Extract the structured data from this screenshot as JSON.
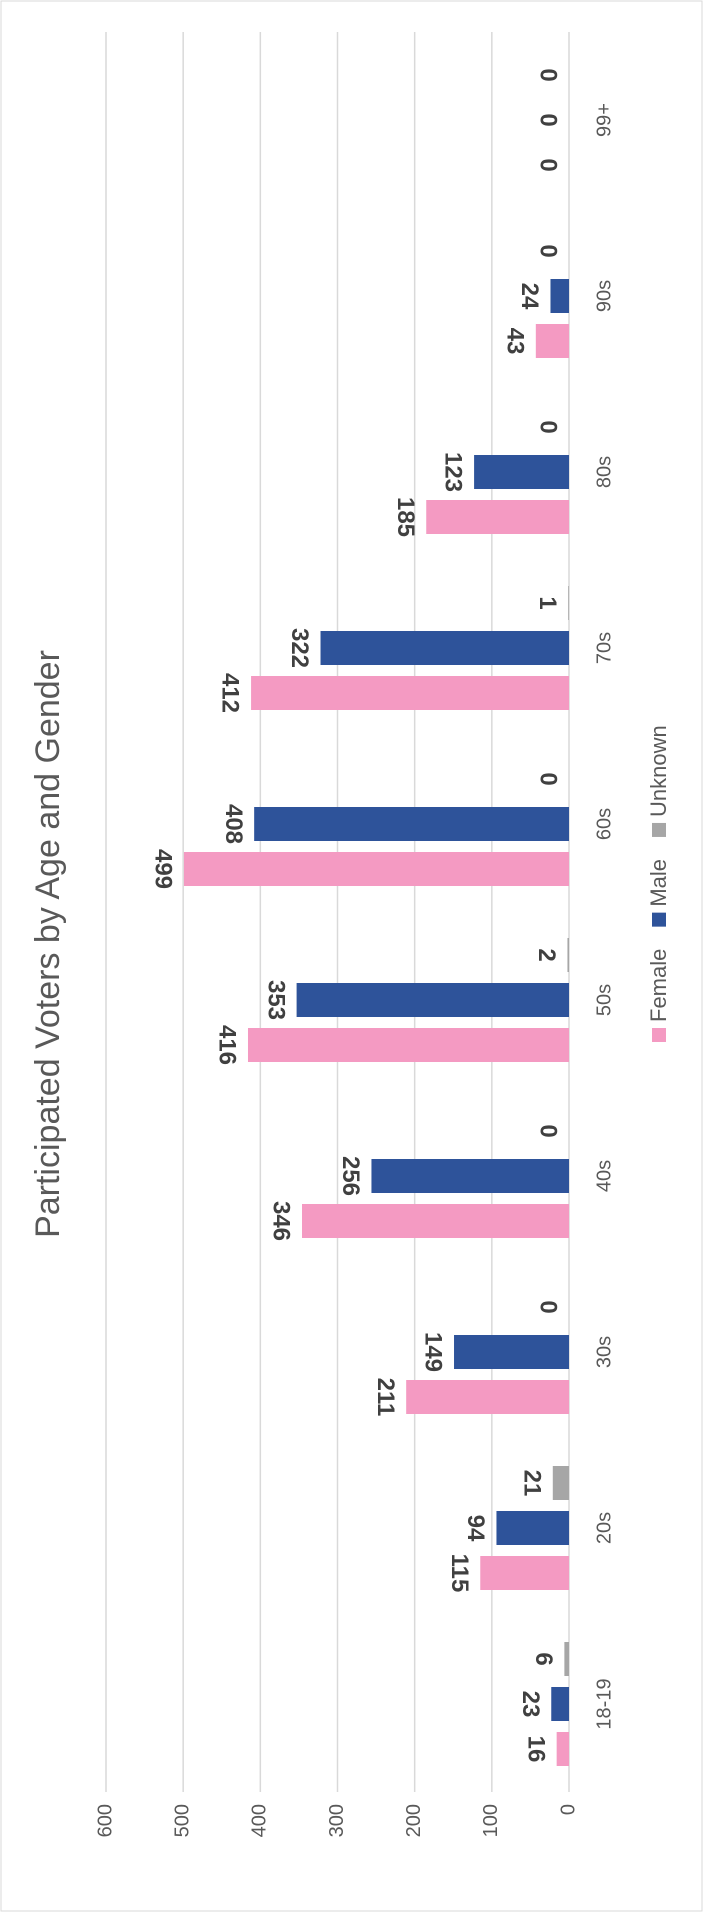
{
  "chart_data": {
    "type": "bar",
    "title": "Participated Voters by Age and Gender",
    "categories": [
      "18-19",
      "20s",
      "30s",
      "40s",
      "50s",
      "60s",
      "70s",
      "80s",
      "90s",
      "99+"
    ],
    "series": [
      {
        "name": "Female",
        "color": "#f49ac2",
        "values": [
          16,
          115,
          211,
          346,
          416,
          499,
          412,
          185,
          43,
          0
        ]
      },
      {
        "name": "Male",
        "color": "#2e539a",
        "values": [
          23,
          94,
          149,
          256,
          353,
          408,
          322,
          123,
          24,
          0
        ]
      },
      {
        "name": "Unknown",
        "color": "#a6a6a6",
        "values": [
          6,
          21,
          0,
          0,
          2,
          0,
          1,
          0,
          0,
          0
        ]
      }
    ],
    "ylim": [
      0,
      600
    ],
    "yticks": [
      0,
      100,
      200,
      300,
      400,
      500,
      600
    ],
    "grid": true,
    "legend": "bottom"
  }
}
